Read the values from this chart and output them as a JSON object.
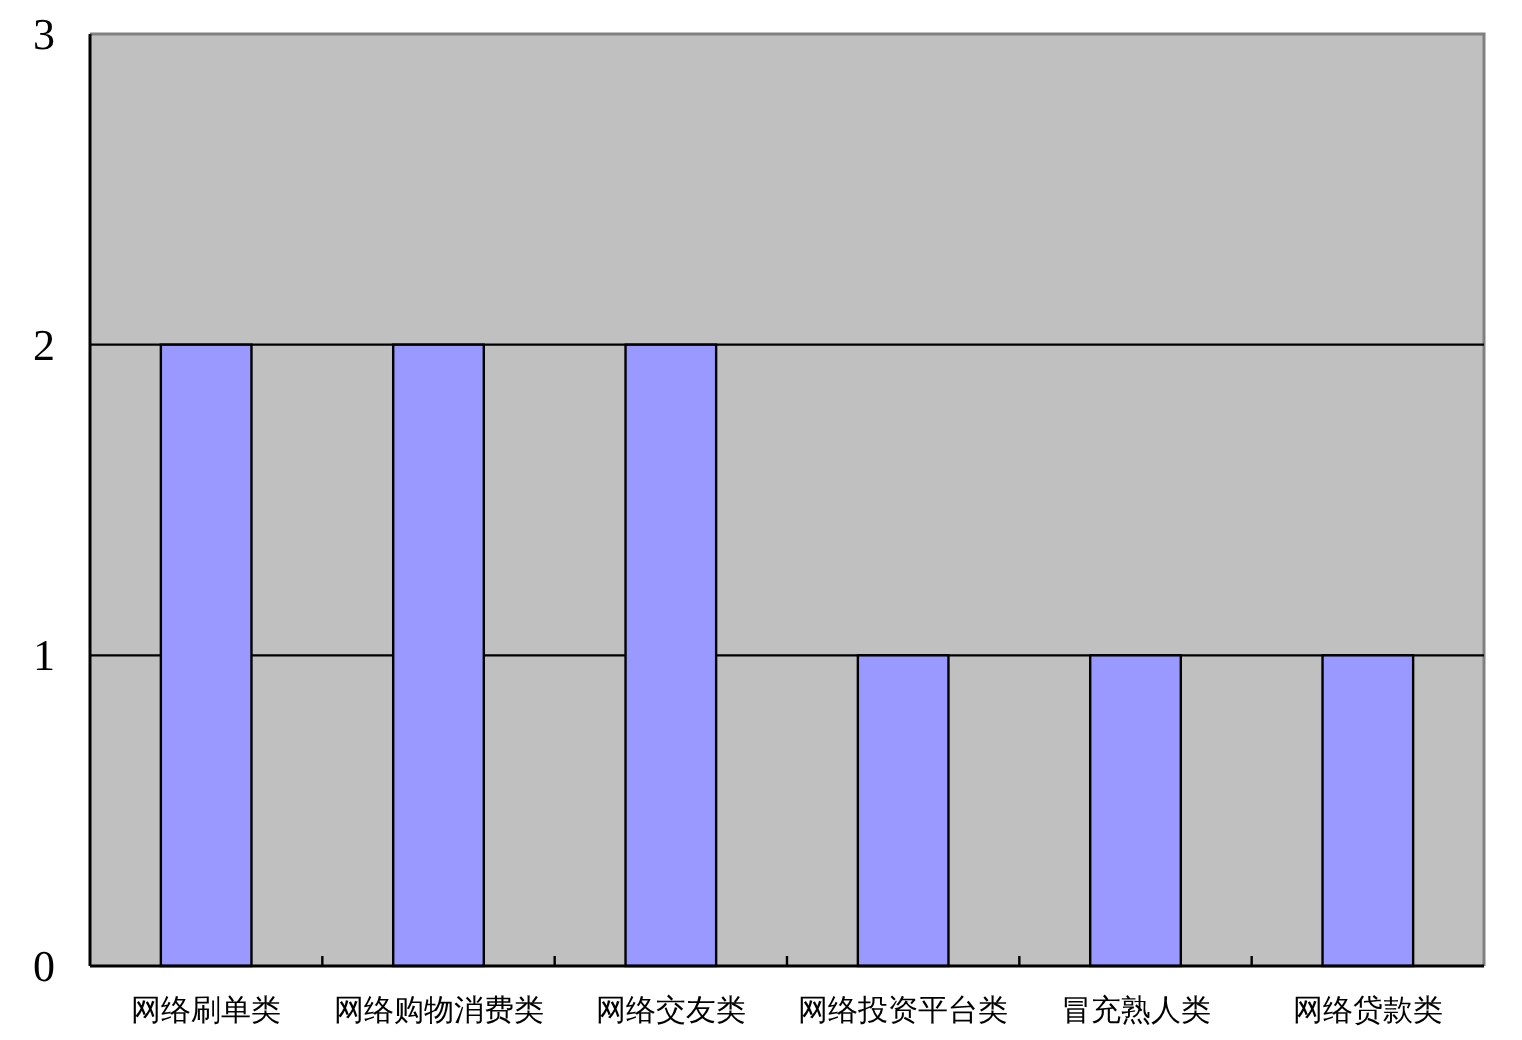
{
  "chart_data": {
    "type": "bar",
    "categories": [
      "网络刷单类",
      "网络购物消费类",
      "网络交友类",
      "网络投资平台类",
      "冒充熟人类",
      "网络贷款类"
    ],
    "values": [
      2,
      2,
      2,
      1,
      1,
      1
    ],
    "color": "#9999ff",
    "ylim": [
      0,
      3
    ],
    "yticks": [
      0,
      1,
      2,
      3
    ],
    "grid": "y",
    "legend": false
  }
}
